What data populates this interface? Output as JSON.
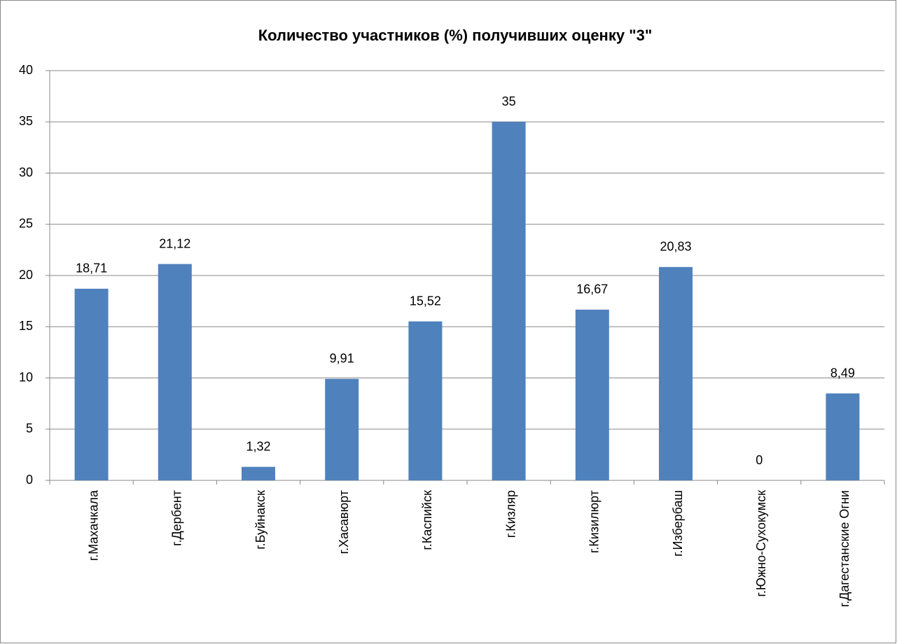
{
  "chart_data": {
    "type": "bar",
    "title": "Количество участников (%) получивших оценку \"3\"",
    "categories": [
      "г.Махачкала",
      "г.Дербент",
      "г.Буйнакск",
      "г.Хасавюрт",
      "г.Каспийск",
      "г.Кизляр",
      "г.Кизилюрт",
      "г.Избербаш",
      "г.Южно-Сухокумск",
      "г.Дагестанские Огни"
    ],
    "values": [
      18.71,
      21.12,
      1.32,
      9.91,
      15.52,
      35,
      16.67,
      20.83,
      0,
      8.49
    ],
    "value_labels": [
      "18,71",
      "21,12",
      "1,32",
      "9,91",
      "15,52",
      "35",
      "16,67",
      "20,83",
      "0",
      "8,49"
    ],
    "color": "#4f81bd",
    "ylim": [
      0,
      40
    ],
    "yticks": [
      0,
      5,
      10,
      15,
      20,
      25,
      30,
      35,
      40
    ],
    "grid": true
  }
}
